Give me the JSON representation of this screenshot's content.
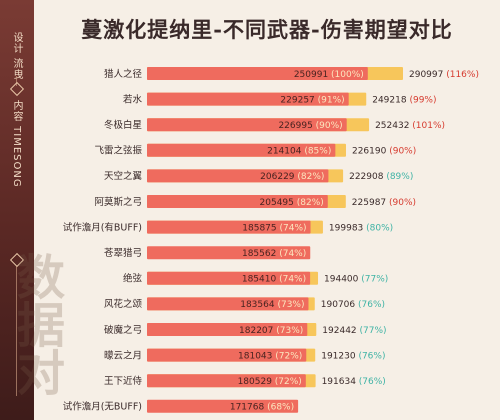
{
  "side": {
    "credit_1": "设计 流曳",
    "credit_2": "内容 TIMESONG"
  },
  "watermark": "数据对",
  "colors": {
    "base_bar": "#ef6b5e",
    "top_bar": "#f7c65b",
    "base_pct_text": "#fbe6bf",
    "top_pct_red": "#d63b2f",
    "top_pct_teal": "#3fb3a5"
  },
  "chart_data": {
    "type": "bar",
    "title": "蔓激化提纳里-不同武器-伤害期望对比",
    "categories": [
      "猎人之径",
      "若水",
      "冬极白星",
      "飞雷之弦振",
      "天空之翼",
      "阿莫斯之弓",
      "试作澹月(有BUFF)",
      "苍翠猎弓",
      "绝弦",
      "风花之颂",
      "破魔之弓",
      "曚云之月",
      "王下近侍",
      "试作澹月(无BUFF)"
    ],
    "series": [
      {
        "values": [
          250991,
          229257,
          226995,
          214104,
          206229,
          205495,
          185875,
          185562,
          185410,
          183564,
          182207,
          181043,
          180529,
          171768
        ],
        "labels": [
          "250991 (100%)",
          "229257 (91%)",
          "226995 (90%)",
          "214104 (85%)",
          "206229 (82%)",
          "205495 (82%)",
          "185875 (74%)",
          "185562 (74%)",
          "185410 (74%)",
          "183564 (73%)",
          "182207 (73%)",
          "181043 (72%)",
          "180529 (72%)",
          "171768 (68%)"
        ]
      },
      {
        "values": [
          290997,
          249218,
          252432,
          226190,
          222908,
          225987,
          199983,
          null,
          194400,
          190706,
          192442,
          191230,
          191634,
          null
        ],
        "label_values": [
          "290997",
          "249218",
          "252432",
          "226190",
          "222908",
          "225987",
          "199983",
          "",
          "194400",
          "190706",
          "192442",
          "191230",
          "191634",
          ""
        ],
        "label_pcts": [
          "(116%)",
          "(99%)",
          "(101%)",
          "(90%)",
          "(89%)",
          "(90%)",
          "(80%)",
          "",
          "(77%)",
          "(76%)",
          "(77%)",
          "(76%)",
          "(76%)",
          ""
        ],
        "pct_colors": [
          "red",
          "red",
          "red",
          "red",
          "teal",
          "red",
          "teal",
          "",
          "teal",
          "teal",
          "teal",
          "teal",
          "teal",
          ""
        ]
      }
    ],
    "xlim": [
      0,
      290997
    ]
  }
}
